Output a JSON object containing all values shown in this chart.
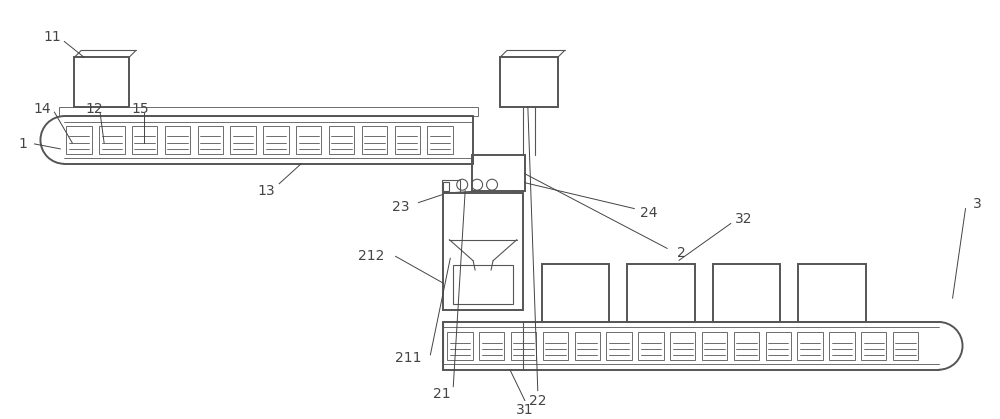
{
  "bg_color": "#ffffff",
  "line_color": "#555555",
  "lw_main": 1.4,
  "lw_thin": 0.8,
  "lw_hair": 0.6,
  "label_fs": 10,
  "label_color": "#444444"
}
